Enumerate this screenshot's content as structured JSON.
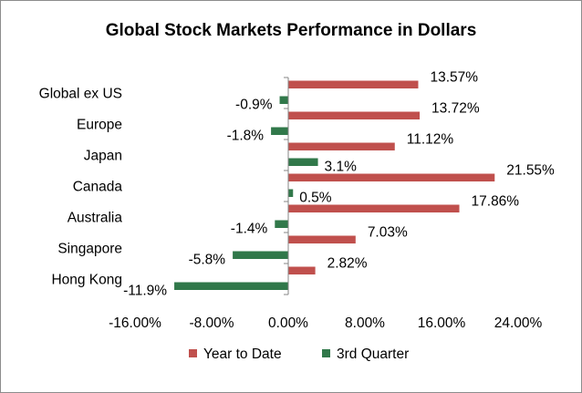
{
  "chart_data": {
    "type": "bar",
    "orientation": "horizontal",
    "title": "Global Stock Markets Performance in Dollars",
    "xlabel": "",
    "ylabel": "",
    "categories": [
      "Global ex US",
      "Europe",
      "Japan",
      "Canada",
      "Australia",
      "Singapore",
      "Hong Kong"
    ],
    "series": [
      {
        "name": "Year to Date",
        "color": "#c0504d",
        "values": [
          13.57,
          13.72,
          11.12,
          21.55,
          17.86,
          7.03,
          2.82
        ],
        "labels": [
          "13.57%",
          "13.72%",
          "11.12%",
          "21.55%",
          "17.86%",
          "7.03%",
          "2.82%"
        ]
      },
      {
        "name": "3rd Quarter",
        "color": "#31784a",
        "values": [
          -0.9,
          -1.8,
          3.1,
          0.5,
          -1.4,
          -5.8,
          -11.9
        ],
        "labels": [
          "-0.9%",
          "-1.8%",
          "3.1%",
          "0.5%",
          "-1.4%",
          "-5.8%",
          "-11.9%"
        ]
      }
    ],
    "xlim": [
      -16,
      24
    ],
    "xticks": [
      -16,
      -8,
      0,
      8,
      16,
      24
    ],
    "xtick_labels": [
      "-16.00%",
      "-8.00%",
      "0.00%",
      "8.00%",
      "16.00%",
      "24.00%"
    ],
    "grid": false,
    "legend": "bottom"
  }
}
